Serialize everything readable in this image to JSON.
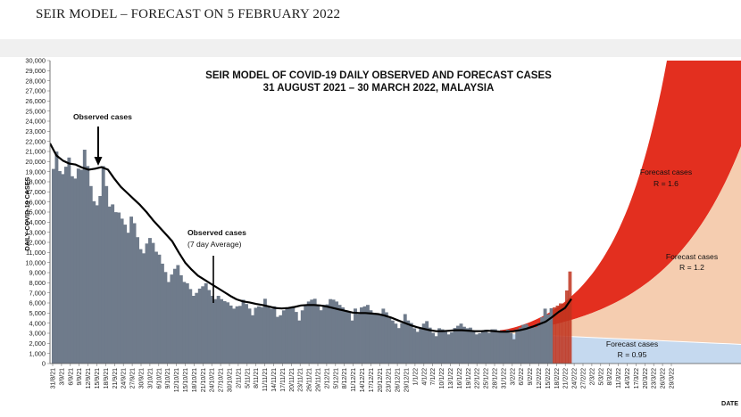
{
  "page": {
    "heading": "SEIR MODEL – FORECAST ON 5 FEBRUARY 2022"
  },
  "colors": {
    "observed_bars": "#6f7b8b",
    "observed_bars_light": "#b9cde6",
    "forecast_r16": "#e32f1f",
    "forecast_r12": "#f5cdb0",
    "forecast_r095": "#c5d9ef",
    "average_line": "#000000"
  },
  "chart_data": {
    "type": "bar",
    "title": "SEIR MODEL OF COVID-19 DAILY OBSERVED AND FORECAST CASES",
    "subtitle": "31 AUGUST 2021 – 30 MARCH 2022, MALAYSIA",
    "ylabel": "DAILY COVID-19 CASES",
    "xlabel": "DATE",
    "ylim": [
      0,
      30000
    ],
    "yticks": [
      0,
      1000,
      2000,
      3000,
      4000,
      5000,
      6000,
      7000,
      8000,
      9000,
      10000,
      11000,
      12000,
      13000,
      14000,
      15000,
      16000,
      17000,
      18000,
      19000,
      20000,
      21000,
      22000,
      23000,
      24000,
      25000,
      26000,
      27000,
      28000,
      29000,
      30000
    ],
    "ytick_labels": [
      "0",
      "1,000",
      "2,000",
      "3,000",
      "4,000",
      "5,000",
      "6,000",
      "7,000",
      "8,000",
      "9,000",
      "10,000",
      "11,000",
      "12,000",
      "13,000",
      "14,000",
      "15,000",
      "16,000",
      "17,000",
      "18,000",
      "19,000",
      "20,000",
      "21,000",
      "22,000",
      "23,000",
      "24,000",
      "25,000",
      "26,000",
      "27,000",
      "28,000",
      "29,000",
      "30,000"
    ],
    "x_tick_labels": [
      "31/8/21",
      "3/9/21",
      "6/9/21",
      "9/9/21",
      "12/9/21",
      "15/9/21",
      "18/9/21",
      "21/9/21",
      "24/9/21",
      "27/9/21",
      "30/9/21",
      "3/10/21",
      "6/10/21",
      "9/10/21",
      "12/10/21",
      "15/10/21",
      "18/10/21",
      "21/10/21",
      "24/10/21",
      "27/10/21",
      "30/10/21",
      "2/11/21",
      "5/11/21",
      "8/11/21",
      "11/11/21",
      "14/11/21",
      "17/11/21",
      "20/11/21",
      "23/11/21",
      "26/11/21",
      "29/11/21",
      "2/12/21",
      "5/12/21",
      "8/12/21",
      "11/12/21",
      "14/12/21",
      "17/12/21",
      "20/12/21",
      "23/12/21",
      "26/12/21",
      "29/12/21",
      "1/1/22",
      "4/1/22",
      "7/1/22",
      "10/1/22",
      "13/1/22",
      "16/1/22",
      "19/1/22",
      "22/1/22",
      "25/1/22",
      "28/1/22",
      "31/1/22",
      "3/2/22",
      "6/2/22",
      "9/2/22",
      "12/2/22",
      "15/2/22",
      "18/2/22",
      "21/2/22",
      "24/2/22",
      "27/2/22",
      "2/3/22",
      "5/3/22",
      "8/3/22",
      "11/3/22",
      "14/3/22",
      "17/3/22",
      "20/3/22",
      "23/3/22",
      "26/3/22",
      "29/3/22"
    ],
    "observed_cases": [
      19268,
      20988,
      19057,
      18762,
      19495,
      20396,
      18547,
      18315,
      19307,
      19198,
      21176,
      19550,
      17577,
      16073,
      15669,
      16586,
      19550,
      17577,
      15549,
      15759,
      14990,
      14954,
      14345,
      13754,
      12950,
      14554,
      13899,
      12510,
      11332,
      10915,
      11889,
      12434,
      11946,
      11075,
      10779,
      9890,
      9066,
      8075,
      8817,
      9380,
      9751,
      8743,
      8084,
      7950,
      7373,
      6709,
      6996,
      7420,
      7646,
      7950,
      7276,
      6703,
      6380,
      6709,
      6377,
      6180,
      6064,
      5745,
      5434,
      5666,
      5705,
      6315,
      5891,
      5446,
      4782,
      5524,
      5666,
      5587,
      6417,
      5555,
      5434,
      5666,
      4625,
      4782,
      5270,
      5446,
      5555,
      5666,
      5105,
      4262,
      5270,
      5802,
      6144,
      6323,
      6417,
      5706,
      5278,
      5807,
      5861,
      6380,
      6323,
      6144,
      5809,
      5555,
      5270,
      5109,
      4262,
      5446,
      4896,
      5555,
      5666,
      5802,
      5278,
      5014,
      4895,
      4896,
      5439,
      5070,
      4512,
      4262,
      3953,
      3510,
      4005,
      4896,
      4262,
      4018,
      3490,
      3140,
      3490,
      3953,
      4198,
      3560,
      3040,
      2710,
      3490,
      3384,
      3140,
      2882,
      3099,
      3519,
      3742,
      3953,
      3648,
      3490,
      3560,
      3140,
      2882,
      2996,
      3142,
      3342,
      3048,
      3390,
      3384,
      3140,
      3099,
      3140,
      3342,
      3048,
      2410,
      3390,
      3567,
      3842,
      3898,
      3670,
      3560,
      3610,
      4000,
      4579,
      5439,
      4863,
      5476,
      5566,
      5732,
      5960,
      5899,
      7234,
      9117
    ],
    "seven_day_average": [
      21800,
      20600,
      20100,
      19800,
      19700,
      19400,
      19200,
      19300,
      19450,
      19200,
      18300,
      17500,
      16900,
      16300,
      15700,
      15000,
      14200,
      13500,
      12800,
      12100,
      11000,
      10000,
      9300,
      8700,
      8300,
      7900,
      7500,
      7100,
      6700,
      6350,
      6150,
      6050,
      5900,
      5800,
      5650,
      5500,
      5450,
      5500,
      5600,
      5750,
      5800,
      5800,
      5750,
      5650,
      5500,
      5350,
      5200,
      5050,
      5000,
      5000,
      4950,
      4900,
      4750,
      4550,
      4300,
      4050,
      3800,
      3600,
      3450,
      3300,
      3200,
      3200,
      3250,
      3300,
      3300,
      3250,
      3200,
      3200,
      3250,
      3200,
      3150,
      3150,
      3200,
      3300,
      3450,
      3650,
      3900,
      4150,
      4600,
      5100,
      5500,
      6400
    ],
    "forecast_series": [
      {
        "name": "Forecast cases R = 1.6",
        "label_line1": "Forecast cases",
        "label_line2": "R = 1.6",
        "start_value": 3300,
        "end_value": 30000
      },
      {
        "name": "Forecast cases R = 1.2",
        "label_line1": "Forecast cases",
        "label_line2": "R = 1.2",
        "start_value": 3100,
        "end_value": 21500
      },
      {
        "name": "Forecast cases R = 0.95",
        "label_line1": "Forecast cases",
        "label_line2": "R = 0.95",
        "start_value": 3000,
        "end_value": 1900
      }
    ],
    "annotations": {
      "observed_cases": "Observed cases",
      "observed_avg_line1": "Observed cases",
      "observed_avg_line2": "(7 day Average)"
    }
  }
}
